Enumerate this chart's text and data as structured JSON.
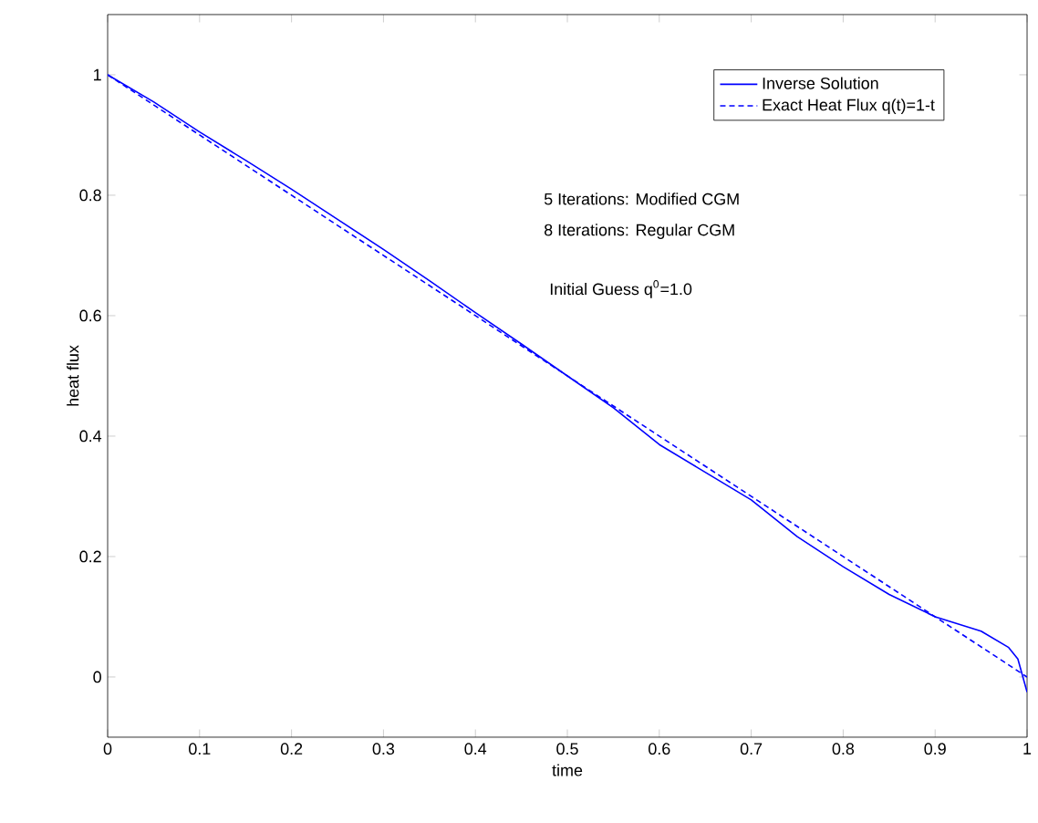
{
  "chart_data": {
    "type": "line",
    "xlabel": "time",
    "ylabel": "heat flux",
    "xlim": [
      0,
      1
    ],
    "ylim": [
      -0.1,
      1.1
    ],
    "xticks": [
      0,
      0.1,
      0.2,
      0.3,
      0.4,
      0.5,
      0.6,
      0.7,
      0.8,
      0.9,
      1
    ],
    "yticks": [
      0,
      0.2,
      0.4,
      0.6,
      0.8,
      1
    ],
    "grid": false,
    "legend": "top right",
    "marker": "none",
    "series": [
      {
        "name": "Inverse Solution",
        "color": "#0000ff",
        "line_style": "solid",
        "x": [
          0,
          0.05,
          0.1,
          0.15,
          0.2,
          0.25,
          0.3,
          0.35,
          0.4,
          0.45,
          0.5,
          0.55,
          0.6,
          0.65,
          0.7,
          0.75,
          0.8,
          0.85,
          0.9,
          0.95,
          0.98,
          0.99,
          1
        ],
        "values": [
          1.0,
          0.955,
          0.905,
          0.858,
          0.81,
          0.76,
          0.71,
          0.658,
          0.605,
          0.553,
          0.5,
          0.447,
          0.386,
          0.34,
          0.294,
          0.233,
          0.183,
          0.137,
          0.1,
          0.076,
          0.049,
          0.03,
          -0.025
        ]
      },
      {
        "name": "Exact Heat Flux q(t)=1-t",
        "color": "#0000ff",
        "line_style": "dashed",
        "x": [
          0,
          1
        ],
        "values": [
          1,
          0
        ]
      }
    ],
    "annotations": [
      "5 Iterations: Modified CGM",
      "8 Iterations: Regular CGM",
      "Initial Guess q$^{0}$=1.0"
    ]
  }
}
